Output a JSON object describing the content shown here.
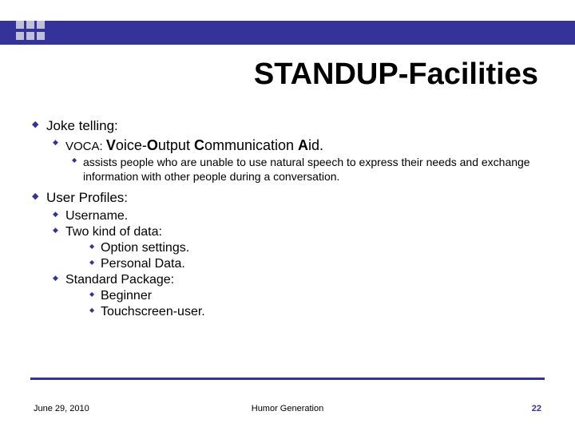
{
  "colors": {
    "accent": "#333399",
    "background": "#ffffff",
    "text": "#000000"
  },
  "title": "STANDUP-Facilities",
  "body": {
    "joke_telling": "Joke telling:",
    "voca_prefix": "VOCA: ",
    "voca_v": "V",
    "voca_oice": "oice-",
    "voca_o": "O",
    "voca_utput": "utput ",
    "voca_c": "C",
    "voca_omm": "ommunication ",
    "voca_a": "A",
    "voca_id": "id.",
    "voca_desc": "assists people who are unable to use natural speech to express their needs and exchange information with other people during a conversation.",
    "user_profiles": "User Profiles:",
    "username": "Username.",
    "two_kind": "Two kind of data:",
    "option_settings": "Option settings.",
    "personal_data": "Personal Data.",
    "standard_package": "Standard Package:",
    "beginner": "Beginner",
    "touchscreen": "Touchscreen-user."
  },
  "footer": {
    "date": "June 29, 2010",
    "center": "Humor Generation",
    "page": "22"
  },
  "typography": {
    "title_fontsize": 38,
    "level1_fontsize": 17,
    "level2_fontsize": 16,
    "level3_fontsize": 14,
    "footer_fontsize": 11
  }
}
